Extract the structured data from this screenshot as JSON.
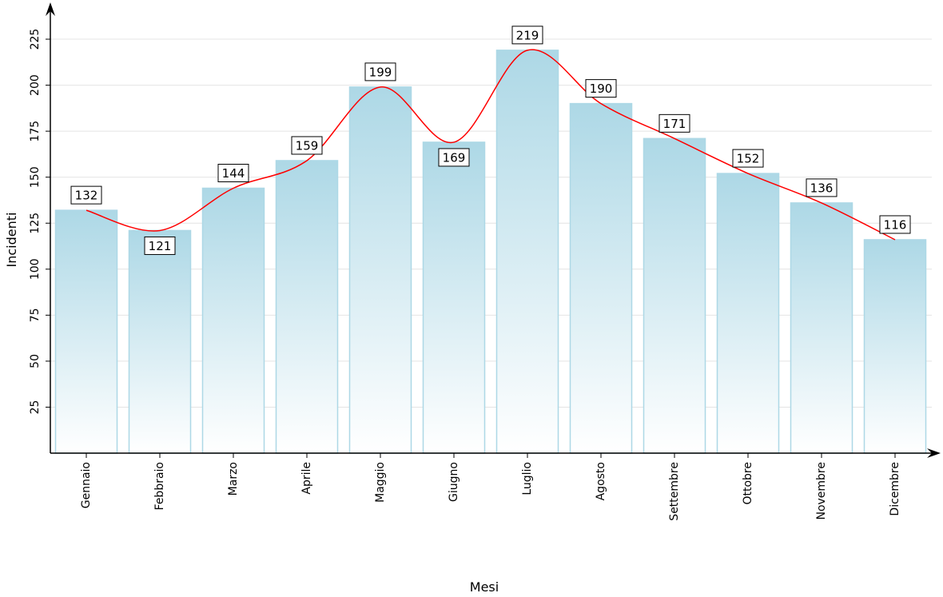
{
  "chart_data": {
    "type": "bar",
    "x_label": "Mesi",
    "y_label": "Incidenti",
    "categories": [
      "Gennaio",
      "Febbraio",
      "Marzo",
      "Aprile",
      "Maggio",
      "Giugno",
      "Luglio",
      "Agosto",
      "Settembre",
      "Ottobre",
      "Novembre",
      "Dicembre"
    ],
    "values": [
      132,
      121,
      144,
      159,
      199,
      169,
      219,
      190,
      171,
      152,
      136,
      116
    ],
    "color": "#add8e6",
    "line_color": "#ff0000",
    "ylim": [
      0,
      240
    ],
    "yticks": [
      25,
      50,
      75,
      100,
      125,
      150,
      175,
      200,
      225
    ],
    "grid": true
  }
}
